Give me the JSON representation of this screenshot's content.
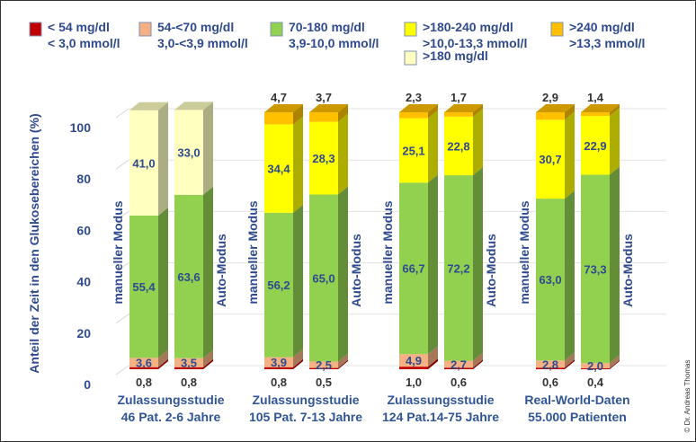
{
  "chart_data": {
    "type": "bar",
    "stacked": true,
    "ylabel": "Anteil der Zeit in den Glukosebereichen (%)",
    "ylim": [
      0,
      100
    ],
    "yticks": [
      0,
      20,
      40,
      60,
      80,
      100
    ],
    "grid": true,
    "legend_position": "top",
    "series": [
      {
        "name": "< 54 mg/dl",
        "name2": "< 3,0 mmol/l",
        "color": "#c00000"
      },
      {
        "name": "54-<70 mg/dl",
        "name2": "3,0-<3,9 mmol/l",
        "color": "#f4b183"
      },
      {
        "name": "70-180 mg/dl",
        "name2": "3,9-10,0 mmol/l",
        "color": "#92d050"
      },
      {
        "name": ">180-240 mg/dl",
        "name2": ">10,0-13,3 mmol/l",
        "color": "#ffff00"
      },
      {
        "name": ">240 mg/dl",
        "name2": ">13,3 mmol/l",
        "color": "#ffc000"
      },
      {
        "name": ">180 mg/dl",
        "name2": "",
        "color": "#ffffc0"
      }
    ],
    "groups": [
      {
        "label": "Zulassungsstudie",
        "label2": "46 Pat. 2-6 Jahre",
        "bars": [
          {
            "mode": "manueller Modus",
            "values": [
              0.8,
              3.6,
              55.4,
              null,
              null,
              41.0
            ]
          },
          {
            "mode": "Auto-Modus",
            "values": [
              0.8,
              3.5,
              63.6,
              null,
              null,
              33.0
            ]
          }
        ]
      },
      {
        "label": "Zulassungsstudie",
        "label2": "105 Pat. 7-13 Jahre",
        "bars": [
          {
            "mode": "manueller Modus",
            "values": [
              0.8,
              3.9,
              56.2,
              34.4,
              4.7,
              null
            ]
          },
          {
            "mode": "Auto-Modus",
            "values": [
              0.5,
              2.5,
              65.0,
              28.3,
              3.7,
              null
            ]
          }
        ]
      },
      {
        "label": "Zulassungsstudie",
        "label2": "124 Pat.14-75 Jahre",
        "bars": [
          {
            "mode": "manueller Modus",
            "values": [
              1.0,
              4.9,
              66.7,
              25.1,
              2.3,
              null
            ]
          },
          {
            "mode": "Auto-Modus",
            "values": [
              0.6,
              2.7,
              72.2,
              22.8,
              1.7,
              null
            ]
          }
        ]
      },
      {
        "label": "Real-World-Daten",
        "label2": "55.000 Patienten",
        "bars": [
          {
            "mode": "manueller Modus",
            "values": [
              0.6,
              2.8,
              63.0,
              30.7,
              2.9,
              null
            ]
          },
          {
            "mode": "Auto-Modus",
            "values": [
              0.4,
              2.0,
              73.3,
              22.9,
              1.4,
              null
            ]
          }
        ]
      }
    ]
  },
  "copyright": "© Dr. Andreas Thomas"
}
